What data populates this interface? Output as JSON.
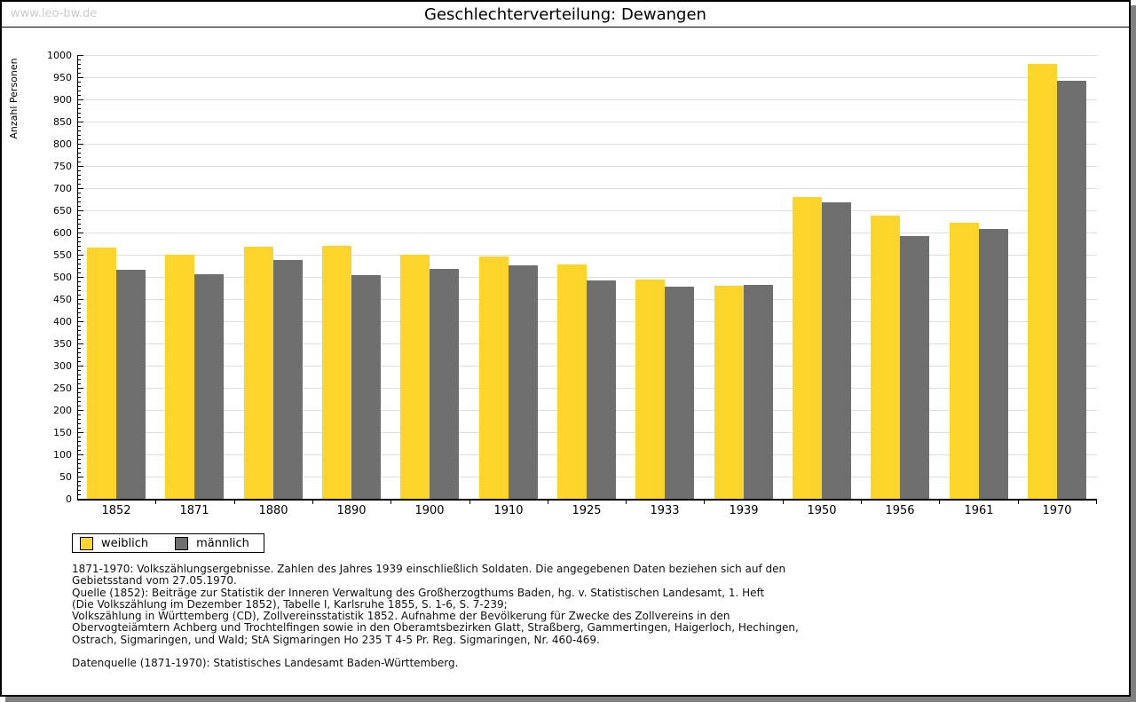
{
  "watermark": "www.leo-bw.de",
  "title": "Geschlechterverteilung: Dewangen",
  "legend": {
    "female": "weiblich",
    "male": "männlich"
  },
  "colors": {
    "female_bar": "#fcd42a",
    "male_bar": "#6f6f6f",
    "grid": "#dedede",
    "frame_shadow": "#808080",
    "watermark": "#cbcbcb"
  },
  "chart_data": {
    "type": "bar",
    "title": "Geschlechterverteilung: Dewangen",
    "xlabel": "",
    "ylabel": "Anzahl Personen",
    "ylim": [
      0,
      1000
    ],
    "ytick_step": 50,
    "minor_tick_step": 10,
    "grid": true,
    "legend_position": "bottom-left",
    "categories": [
      "1852",
      "1871",
      "1880",
      "1890",
      "1900",
      "1910",
      "1925",
      "1933",
      "1939",
      "1950",
      "1956",
      "1961",
      "1970"
    ],
    "series": [
      {
        "name": "weiblich",
        "color": "#fcd42a",
        "values": [
          565,
          550,
          567,
          569,
          549,
          545,
          528,
          493,
          479,
          679,
          637,
          621,
          980
        ]
      },
      {
        "name": "männlich",
        "color": "#6f6f6f",
        "values": [
          515,
          505,
          537,
          503,
          517,
          525,
          492,
          478,
          482,
          668,
          592,
          608,
          941
        ]
      }
    ]
  },
  "footnotes": {
    "lines": [
      "1871-1970: Volkszählungsergebnisse. Zahlen des Jahres 1939 einschließlich Soldaten. Die angegebenen Daten beziehen sich auf den",
      "Gebietsstand vom 27.05.1970.",
      "Quelle (1852): Beiträge zur Statistik der Inneren Verwaltung des Großherzogthums Baden, hg. v. Statistischen Landesamt, 1. Heft",
      "(Die Volkszählung im Dezember 1852), Tabelle I, Karlsruhe 1855, S. 1-6, S. 7-239;",
      "Volkszählung in Württemberg (CD), Zollvereinsstatistik 1852. Aufnahme der Bevölkerung für Zwecke des Zollvereins in den",
      "Obervogteiämtern Achberg und Trochtelfingen sowie in den Oberamtsbezirken Glatt, Straßberg, Gammertingen, Haigerloch, Hechingen,",
      "Ostrach, Sigmaringen, und Wald; StA Sigmaringen Ho 235 T 4-5 Pr. Reg. Sigmaringen, Nr. 460-469."
    ],
    "source_line": "Datenquelle (1871-1970): Statistisches Landesamt Baden-Württemberg."
  }
}
